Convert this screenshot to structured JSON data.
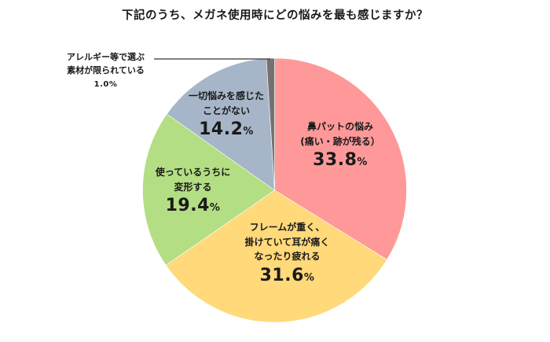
{
  "chart_data": {
    "type": "pie",
    "title": "下記のうち、メガネ使用時にどの悩みを最も感じますか？",
    "start_angle": "12 o'clock",
    "direction": "clockwise",
    "legend": "none (data labels inside/beside slices)",
    "slices": [
      {
        "label_lines": [
          "鼻パットの悩み",
          "(痛い・跡が残る）"
        ],
        "label": "鼻パットの悩み(痛い・跡が残る）",
        "value": 33.8,
        "display": "33.8",
        "unit": "%",
        "color": "#FF9999"
      },
      {
        "label_lines": [
          "フレームが重く、",
          "掛けていて耳が痛く",
          "なったり疲れる"
        ],
        "label": "フレームが重く、掛けていて耳が痛くなったり疲れる",
        "value": 31.6,
        "display": "31.6",
        "unit": "%",
        "color": "#FFD97A"
      },
      {
        "label_lines": [
          "使っているうちに",
          "変形する"
        ],
        "label": "使っているうちに変形する",
        "value": 19.4,
        "display": "19.4",
        "unit": "%",
        "color": "#B3DE83"
      },
      {
        "label_lines": [
          "一切悩みを感じた",
          "ことがない"
        ],
        "label": "一切悩みを感じたことがない",
        "value": 14.2,
        "display": "14.2",
        "unit": "%",
        "color": "#A6B6C8"
      },
      {
        "label_lines": [
          "アレルギー等で選ぶ",
          "素材が限られている"
        ],
        "label": "アレルギー等で選ぶ素材が限られている",
        "value": 1.0,
        "display": "1.0%",
        "unit": "%",
        "color": "#767171"
      }
    ]
  }
}
